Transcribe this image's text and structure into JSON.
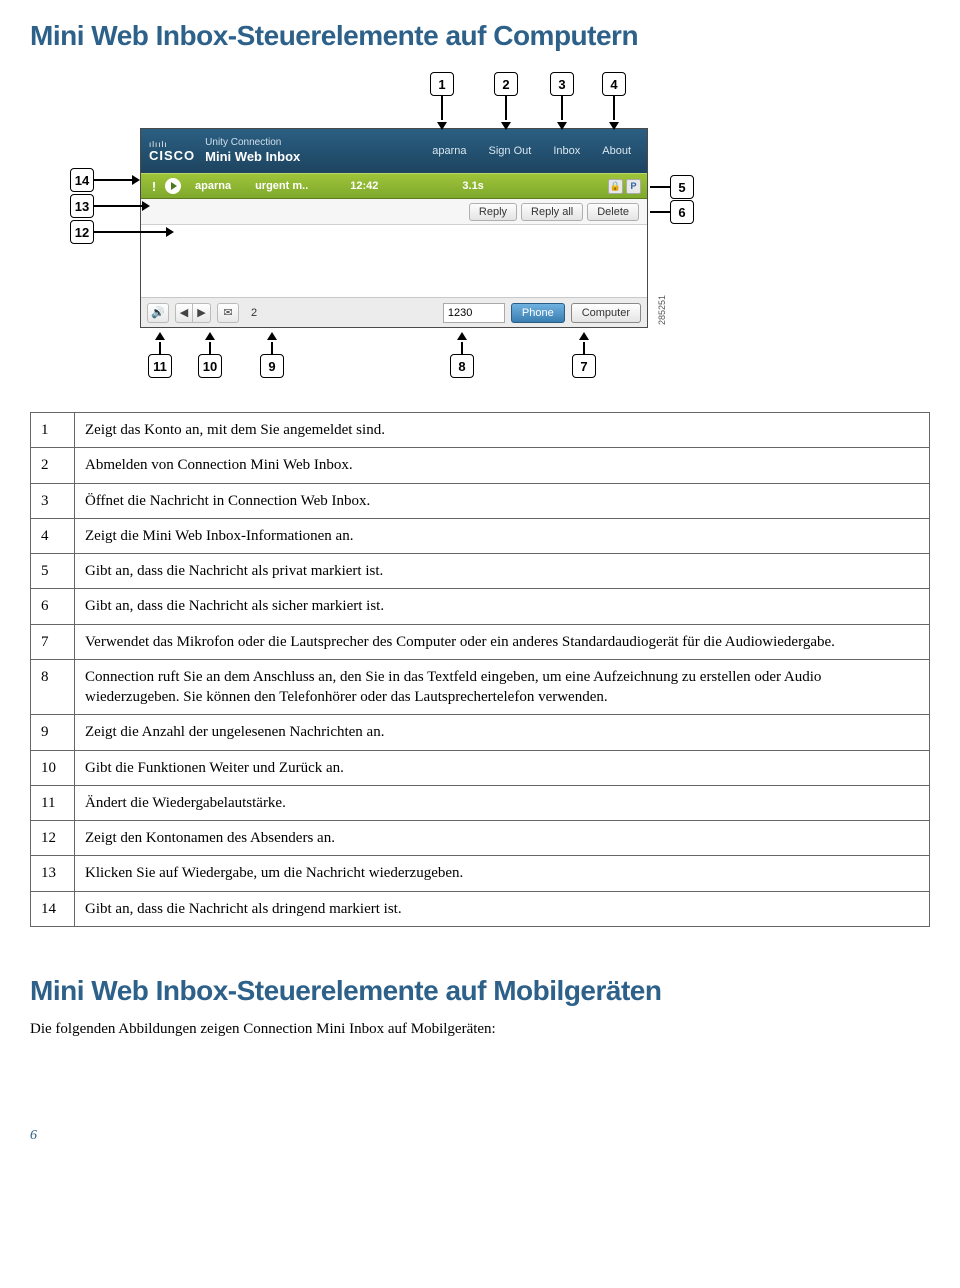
{
  "title_h1": "Mini Web Inbox-Steuerelemente auf Computern",
  "title_h2": "Mini Web Inbox-Steuerelemente auf Mobilgeräten",
  "intro_h2": "Die folgenden Abbildungen zeigen Connection Mini Inbox auf Mobilgeräten:",
  "page_number": "6",
  "ui": {
    "cisco_bars": "ılıılı",
    "cisco_text": "CISCO",
    "brand_top": "Unity Connection",
    "brand_bot": "Mini Web Inbox",
    "hdr_user": "aparna",
    "hdr_signout": "Sign Out",
    "hdr_inbox": "Inbox",
    "hdr_about": "About",
    "msg_urgent": "!",
    "msg_from": "aparna",
    "msg_subj": "urgent m..",
    "msg_time": "12:42",
    "msg_dur": "3.1s",
    "flag_lock": "🔒",
    "flag_p": "P",
    "btn_reply": "Reply",
    "btn_replyall": "Reply all",
    "btn_delete": "Delete",
    "ft_vol": "🔊",
    "ft_prev": "◀",
    "ft_next": "▶",
    "ft_mail": "✉",
    "ft_count": "2",
    "ft_ext": "1230",
    "ft_phone": "Phone",
    "ft_computer": "Computer",
    "vref": "285251"
  },
  "callouts": {
    "c1": "1",
    "c2": "2",
    "c3": "3",
    "c4": "4",
    "c5": "5",
    "c6": "6",
    "c7": "7",
    "c8": "8",
    "c9": "9",
    "c10": "10",
    "c11": "11",
    "c12": "12",
    "c13": "13",
    "c14": "14"
  },
  "rows": [
    {
      "n": "1",
      "t": "Zeigt das Konto an, mit dem Sie angemeldet sind."
    },
    {
      "n": "2",
      "t": "Abmelden von Connection Mini Web Inbox."
    },
    {
      "n": "3",
      "t": "Öffnet die Nachricht in Connection Web Inbox."
    },
    {
      "n": "4",
      "t": "Zeigt die Mini Web Inbox-Informationen an."
    },
    {
      "n": "5",
      "t": "Gibt an, dass die Nachricht als privat markiert ist."
    },
    {
      "n": "6",
      "t": "Gibt an, dass die Nachricht als sicher markiert ist."
    },
    {
      "n": "7",
      "t": "Verwendet das Mikrofon oder die Lautsprecher des Computer oder ein anderes Standardaudiogerät für die Audiowiedergabe."
    },
    {
      "n": "8",
      "t": "Connection ruft Sie an dem Anschluss an, den Sie in das Textfeld eingeben, um eine Aufzeichnung zu erstellen oder Audio wiederzugeben. Sie können den Telefonhörer oder das Lautsprechertelefon verwenden."
    },
    {
      "n": "9",
      "t": "Zeigt die Anzahl der ungelesenen Nachrichten an."
    },
    {
      "n": "10",
      "t": "Gibt die Funktionen Weiter und Zurück an."
    },
    {
      "n": "11",
      "t": "Ändert die Wiedergabelautstärke."
    },
    {
      "n": "12",
      "t": "Zeigt den Kontonamen des Absenders an."
    },
    {
      "n": "13",
      "t": "Klicken Sie auf Wiedergabe, um die Nachricht wiederzugeben."
    },
    {
      "n": "14",
      "t": "Gibt an, dass die Nachricht als dringend markiert ist."
    }
  ]
}
